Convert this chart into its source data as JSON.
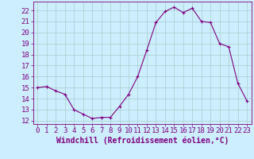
{
  "x": [
    0,
    1,
    2,
    3,
    4,
    5,
    6,
    7,
    8,
    9,
    10,
    11,
    12,
    13,
    14,
    15,
    16,
    17,
    18,
    19,
    20,
    21,
    22,
    23
  ],
  "y": [
    15.0,
    15.1,
    14.7,
    14.4,
    13.0,
    12.6,
    12.2,
    12.3,
    12.3,
    13.3,
    14.4,
    16.0,
    18.4,
    20.9,
    21.9,
    22.3,
    21.8,
    22.2,
    21.0,
    20.9,
    19.0,
    18.7,
    15.4,
    13.8
  ],
  "line_color": "#800080",
  "marker": "+",
  "marker_size": 3,
  "bg_color": "#cceeff",
  "grid_color": "#aacccc",
  "xlabel": "Windchill (Refroidissement éolien,°C)",
  "xlabel_fontsize": 7,
  "ylabel_ticks": [
    12,
    13,
    14,
    15,
    16,
    17,
    18,
    19,
    20,
    21,
    22
  ],
  "ylim": [
    11.7,
    22.8
  ],
  "xlim": [
    -0.5,
    23.5
  ],
  "tick_fontsize": 6.5,
  "font_family": "monospace"
}
